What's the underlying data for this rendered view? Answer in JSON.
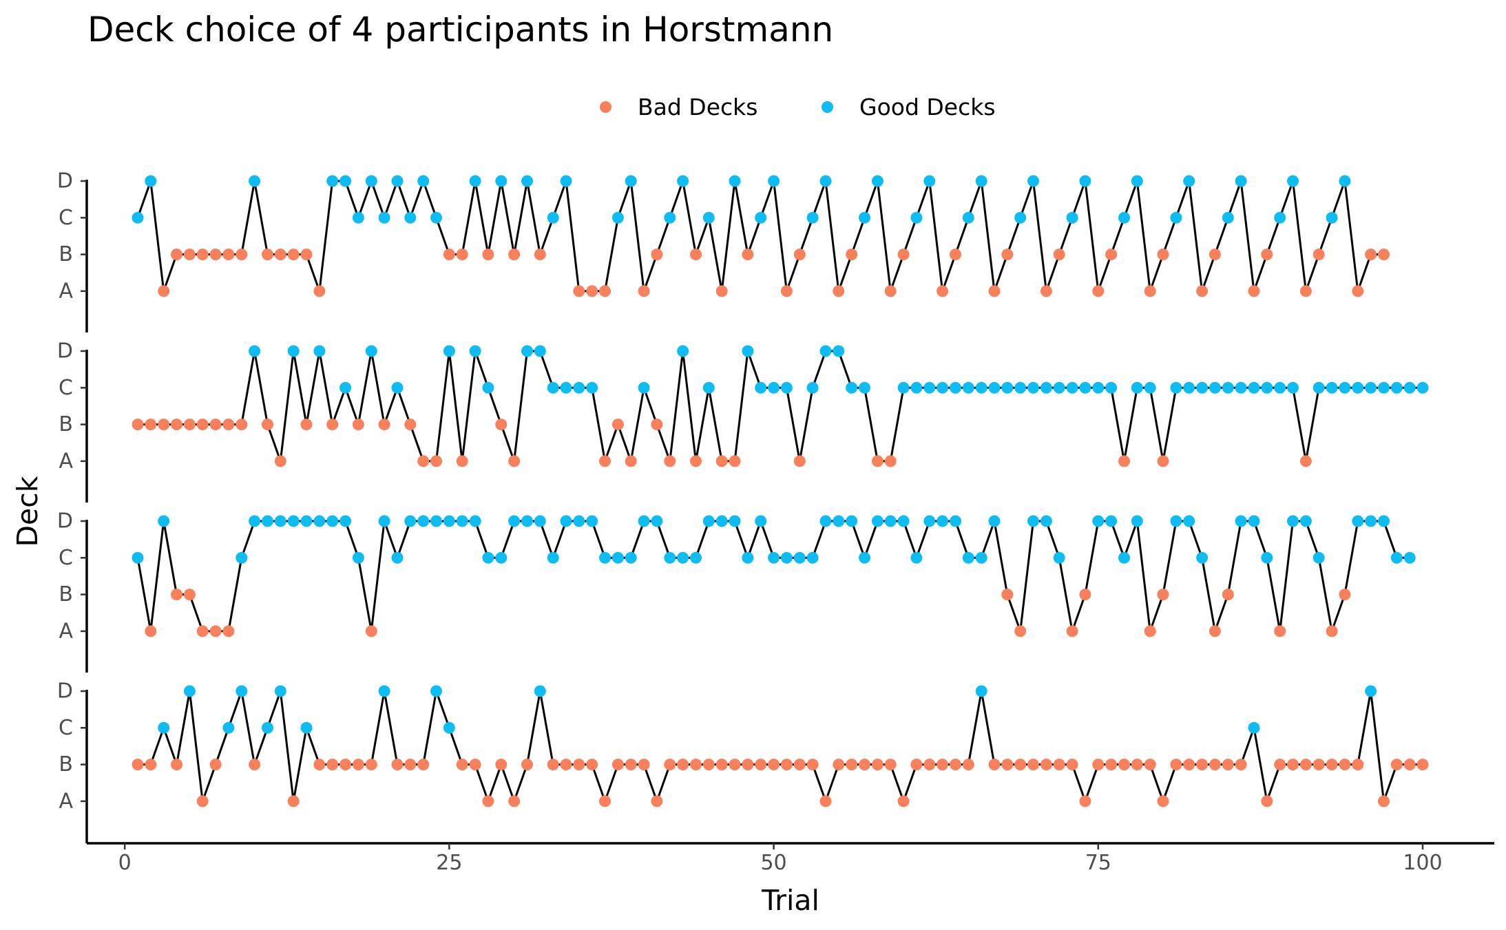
{
  "chart_data": {
    "type": "line",
    "title": "Deck choice of 4 participants in Horstmann",
    "xlabel": "Trial",
    "ylabel": "Deck",
    "xlim": [
      0,
      100
    ],
    "x_ticks": [
      "0",
      "25",
      "50",
      "75",
      "100"
    ],
    "y_categories": [
      "A",
      "B",
      "C",
      "D"
    ],
    "legend": {
      "position": "top",
      "entries": [
        {
          "label": "Bad Decks",
          "color": "#F8805A",
          "decks": [
            "A",
            "B"
          ]
        },
        {
          "label": "Good Decks",
          "color": "#0DBCF2",
          "decks": [
            "C",
            "D"
          ]
        }
      ]
    },
    "line_color": "#000000",
    "x": [
      1,
      2,
      3,
      4,
      5,
      6,
      7,
      8,
      9,
      10,
      11,
      12,
      13,
      14,
      15,
      16,
      17,
      18,
      19,
      20,
      21,
      22,
      23,
      24,
      25,
      26,
      27,
      28,
      29,
      30,
      31,
      32,
      33,
      34,
      35,
      36,
      37,
      38,
      39,
      40,
      41,
      42,
      43,
      44,
      45,
      46,
      47,
      48,
      49,
      50,
      51,
      52,
      53,
      54,
      55,
      56,
      57,
      58,
      59,
      60,
      61,
      62,
      63,
      64,
      65,
      66,
      67,
      68,
      69,
      70,
      71,
      72,
      73,
      74,
      75,
      76,
      77,
      78,
      79,
      80,
      81,
      82,
      83,
      84,
      85,
      86,
      87,
      88,
      89,
      90,
      91,
      92,
      93,
      94,
      95,
      96,
      97,
      98,
      99,
      100
    ],
    "panels": [
      {
        "deck_sequence": "CDABBBBBBDBBBBADDCDCDCDCBBDBDBDBCDAAACDABCDBCADBCDABCDABCDABCDABCDABCDABCDABCDABCDABCDABCDABCDABB"
      },
      {
        "deck_sequence": "BBBBBBBBBDBADBDBCBDBCBAADADCBADDCCCCABACBADACAADCCCACDDCCAACCCCCCCCCCCCCCCCCACCACCCCCCCCCCACCCCCCCCC"
      },
      {
        "deck_sequence": "CADBBAAACDDDDDDDDCADCDDDDDDCCDDDCDDDCCCDDCCCDDDCDCCCCDDDCDDDCDDDCCDBADDCABDDCDABDDCABDDCADDCABDDDCC"
      },
      {
        "deck_sequence": "BBCBDABCDBCDACBBBBBDBBBDCBBABABDBBBBABBBABBBBBBBBBBBBABBBBBABBBBBDBBBBBBBABBBBBABBBBBBCABBBBBBBDABBB"
      }
    ]
  }
}
